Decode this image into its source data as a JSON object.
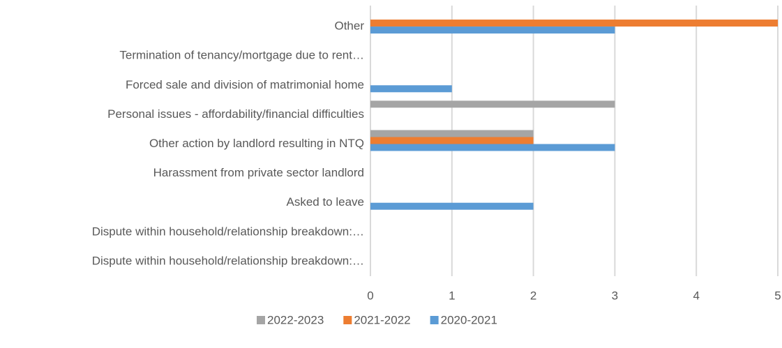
{
  "chart_data": {
    "type": "hbar",
    "categories": [
      "Other",
      "Termination of tenancy/mortgage due to rent…",
      "Forced sale and division of matrimonial home",
      "Personal issues - affordability/financial difficulties",
      "Other action by landlord resulting in NTQ",
      "Harassment from private sector landlord",
      "Asked to leave",
      "Dispute within household/relationship breakdown:…",
      "Dispute within household/relationship breakdown:…"
    ],
    "series": [
      {
        "name": "2022-2023",
        "color": "#a5a5a5",
        "values": [
          0,
          0,
          0,
          3,
          2,
          0,
          0,
          0,
          0
        ]
      },
      {
        "name": "2021-2022",
        "color": "#ed7d31",
        "values": [
          5,
          0,
          0,
          0,
          2,
          0,
          0,
          0,
          0
        ]
      },
      {
        "name": "2020-2021",
        "color": "#5b9bd5",
        "values": [
          3,
          0,
          1,
          0,
          3,
          0,
          2,
          0,
          0
        ]
      }
    ],
    "xlim": [
      0,
      5
    ],
    "xticks": [
      0,
      1,
      2,
      3,
      4,
      5
    ],
    "grid": true,
    "legend": "bottom"
  }
}
